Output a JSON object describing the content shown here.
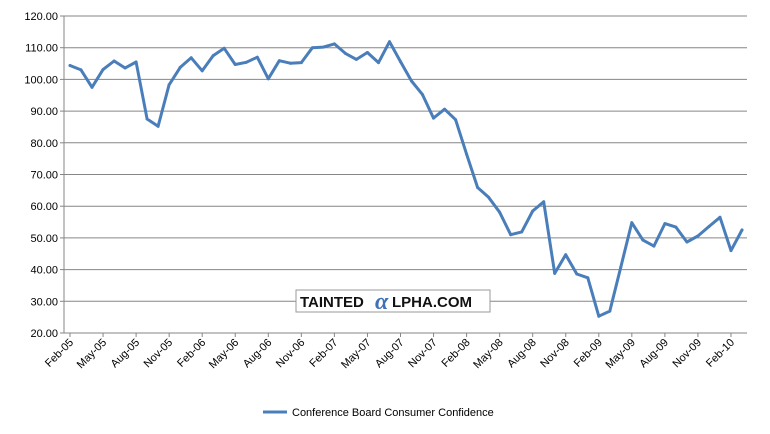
{
  "chart_data": {
    "type": "line",
    "title": "",
    "xlabel": "",
    "ylabel": "",
    "ylim": [
      20,
      120
    ],
    "y_ticks": [
      "20.00",
      "30.00",
      "40.00",
      "50.00",
      "60.00",
      "70.00",
      "80.00",
      "90.00",
      "100.00",
      "110.00",
      "120.00"
    ],
    "grid": "horizontal",
    "legend_position": "bottom",
    "x": [
      "Feb-05",
      "Mar-05",
      "Apr-05",
      "May-05",
      "Jun-05",
      "Jul-05",
      "Aug-05",
      "Sep-05",
      "Oct-05",
      "Nov-05",
      "Dec-05",
      "Jan-06",
      "Feb-06",
      "Mar-06",
      "Apr-06",
      "May-06",
      "Jun-06",
      "Jul-06",
      "Aug-06",
      "Sep-06",
      "Oct-06",
      "Nov-06",
      "Dec-06",
      "Jan-07",
      "Feb-07",
      "Mar-07",
      "Apr-07",
      "May-07",
      "Jun-07",
      "Jul-07",
      "Aug-07",
      "Sep-07",
      "Oct-07",
      "Nov-07",
      "Dec-07",
      "Jan-08",
      "Feb-08",
      "Mar-08",
      "Apr-08",
      "May-08",
      "Jun-08",
      "Jul-08",
      "Aug-08",
      "Sep-08",
      "Oct-08",
      "Nov-08",
      "Dec-08",
      "Jan-09",
      "Feb-09",
      "Mar-09",
      "Apr-09",
      "May-09",
      "Jun-09",
      "Jul-09",
      "Aug-09",
      "Sep-09",
      "Oct-09",
      "Nov-09",
      "Dec-09",
      "Jan-10",
      "Feb-10",
      "Mar-10"
    ],
    "x_tick_labels": [
      "Feb-05",
      "May-05",
      "Aug-05",
      "Nov-05",
      "Feb-06",
      "May-06",
      "Aug-06",
      "Nov-06",
      "Feb-07",
      "May-07",
      "Aug-07",
      "Nov-07",
      "Feb-08",
      "May-08",
      "Aug-08",
      "Nov-08",
      "Feb-09",
      "May-09",
      "Aug-09",
      "Nov-09",
      "Feb-10"
    ],
    "series": [
      {
        "name": "Conference Board Consumer Confidence",
        "color": "#4a7ebb",
        "values": [
          104.4,
          103.0,
          97.5,
          103.1,
          105.8,
          103.6,
          105.5,
          87.5,
          85.2,
          98.3,
          103.8,
          106.8,
          102.7,
          107.5,
          109.8,
          104.7,
          105.4,
          107.0,
          100.2,
          105.9,
          105.1,
          105.3,
          110.0,
          110.2,
          111.2,
          108.2,
          106.3,
          108.5,
          105.3,
          111.9,
          105.6,
          99.5,
          95.2,
          87.8,
          90.6,
          87.3,
          76.4,
          65.9,
          62.8,
          58.1,
          51.0,
          51.9,
          58.5,
          61.4,
          38.8,
          44.7,
          38.6,
          37.4,
          25.3,
          26.9,
          40.8,
          54.8,
          49.3,
          47.4,
          54.5,
          53.4,
          48.7,
          50.6,
          53.6,
          56.5,
          46.0,
          52.5
        ]
      }
    ]
  },
  "legend": {
    "label": "Conference Board Consumer Confidence"
  },
  "watermark": {
    "left": "TAINTED",
    "alpha": "α",
    "right": "LPHA.COM"
  }
}
